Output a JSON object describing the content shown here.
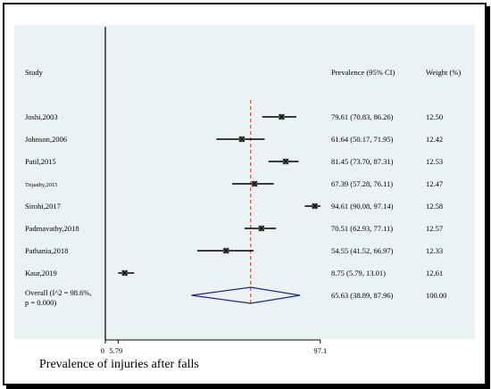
{
  "chart_data": {
    "type": "forest",
    "xlabel": "Prevalence of injuries after falls",
    "xlim": [
      0,
      100
    ],
    "x_ticks": [
      "0",
      "5.79",
      "97.1"
    ],
    "reference_line": 65.63,
    "headers": {
      "study": "Study",
      "prevalence": "Prevalence (95% CI)",
      "weight": "Weight (%)"
    },
    "studies": [
      {
        "name": "Joshi,2003",
        "estimate": 79.61,
        "lower": 70.83,
        "upper": 86.26,
        "ci_text": "79.61 (70.83, 86.26)",
        "weight": "12.50"
      },
      {
        "name": "Johnson,2006",
        "estimate": 61.64,
        "lower": 50.17,
        "upper": 71.95,
        "ci_text": "61.64 (50.17, 71.95)",
        "weight": "12.42"
      },
      {
        "name": "Patil,2015",
        "estimate": 81.45,
        "lower": 73.7,
        "upper": 87.31,
        "ci_text": "81.45 (73.70, 87.31)",
        "weight": "12.53"
      },
      {
        "name": "Tripathy,2015",
        "estimate": 67.39,
        "lower": 57.28,
        "upper": 76.11,
        "ci_text": "67.39 (57.28, 76.11)",
        "weight": "12.47"
      },
      {
        "name": "Sirohi,2017",
        "estimate": 94.61,
        "lower": 90.08,
        "upper": 97.14,
        "ci_text": "94.61 (90.08, 97.14)",
        "weight": "12.58"
      },
      {
        "name": "Padmavathy,2018",
        "estimate": 70.51,
        "lower": 62.93,
        "upper": 77.11,
        "ci_text": "70.51 (62.93, 77.11)",
        "weight": "12.57"
      },
      {
        "name": "Pathania,2018",
        "estimate": 54.55,
        "lower": 41.52,
        "upper": 66.97,
        "ci_text": "54.55 (41.52, 66.97)",
        "weight": "12.33"
      },
      {
        "name": "Kaur,2019",
        "estimate": 8.75,
        "lower": 5.79,
        "upper": 13.01,
        "ci_text": "8.75 (5.79, 13.01)",
        "weight": "12.61"
      }
    ],
    "overall": {
      "label_line1": "Overall (I^2 = 98.6%,",
      "label_line2": "p = 0.000)",
      "estimate": 65.63,
      "lower": 38.89,
      "upper": 87.96,
      "ci_text": "65.63 (38.89, 87.96)",
      "weight": "100.00"
    },
    "colors": {
      "background": "#ebf2f4",
      "diamond": "#1f2a8a",
      "reference": "#c0392b",
      "ci": "#000000"
    }
  }
}
